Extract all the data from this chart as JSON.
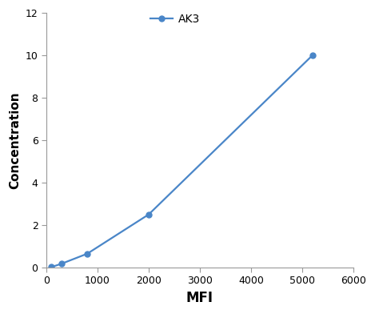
{
  "x": [
    100,
    300,
    800,
    2000,
    5200
  ],
  "y": [
    0.02,
    0.18,
    0.65,
    2.5,
    10.0
  ],
  "line_color": "#4a86c8",
  "marker_color": "#4a86c8",
  "marker_style": "o",
  "marker_size": 5,
  "line_width": 1.6,
  "xlabel": "MFI",
  "ylabel": "Concentration",
  "xlabel_fontsize": 12,
  "ylabel_fontsize": 11,
  "xlabel_fontweight": "bold",
  "ylabel_fontweight": "bold",
  "legend_label": "AK3",
  "xlim": [
    0,
    6000
  ],
  "ylim": [
    0,
    12
  ],
  "xticks": [
    0,
    1000,
    2000,
    3000,
    4000,
    5000,
    6000
  ],
  "yticks": [
    0,
    2,
    4,
    6,
    8,
    10,
    12
  ],
  "tick_fontsize": 9,
  "background_color": "#ffffff",
  "spine_color": "#999999",
  "legend_fontsize": 10
}
